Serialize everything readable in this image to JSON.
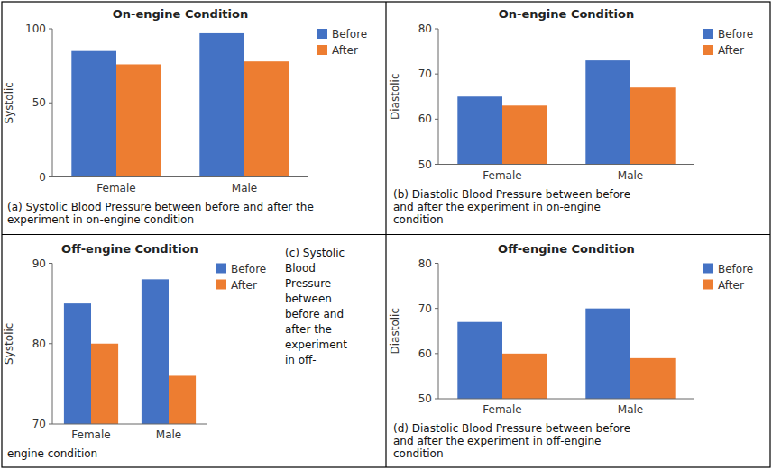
{
  "chart_data": [
    {
      "type": "bar",
      "title": "On-engine Condition",
      "ylabel": "Systolic",
      "categories": [
        "Female",
        "Male"
      ],
      "series": [
        {
          "name": "Before",
          "color": "#4472C4",
          "values": [
            85,
            97
          ]
        },
        {
          "name": "After",
          "color": "#ED7D31",
          "values": [
            76,
            78
          ]
        }
      ],
      "ylim": [
        0,
        100
      ],
      "yticks": [
        0,
        50,
        100
      ],
      "grid": false,
      "legend": "upper right",
      "annotations": [
        "(a) Systolic Blood Pressure between before and after the",
        "experiment in on-engine condition"
      ]
    },
    {
      "type": "bar",
      "title": "On-engine Condition",
      "ylabel": "Diastolic",
      "categories": [
        "Female",
        "Male"
      ],
      "series": [
        {
          "name": "Before",
          "color": "#4472C4",
          "values": [
            65,
            73
          ]
        },
        {
          "name": "After",
          "color": "#ED7D31",
          "values": [
            63,
            67
          ]
        }
      ],
      "ylim": [
        50,
        80
      ],
      "yticks": [
        50,
        60,
        70,
        80
      ],
      "grid": false,
      "legend": "upper right",
      "annotations": [
        "(b) Diastolic Blood Pressure between before",
        "and after the experiment in on-engine",
        "condition"
      ]
    },
    {
      "type": "bar",
      "title": "Off-engine Condition",
      "ylabel": "Systolic",
      "categories": [
        "Female",
        "Male"
      ],
      "series": [
        {
          "name": "Before",
          "color": "#4472C4",
          "values": [
            85,
            88
          ]
        },
        {
          "name": "After",
          "color": "#ED7D31",
          "values": [
            80,
            76
          ]
        }
      ],
      "ylim": [
        70,
        90
      ],
      "yticks": [
        70,
        80,
        90
      ],
      "grid": false,
      "legend": "upper right",
      "annotations": [
        "(c) Systolic",
        "Blood",
        "Pressure",
        "between",
        "before and",
        "after the",
        "experiment",
        "in off-",
        "engine condition"
      ]
    },
    {
      "type": "bar",
      "title": "Off-engine Condition",
      "ylabel": "Diastolic",
      "categories": [
        "Female",
        "Male"
      ],
      "series": [
        {
          "name": "Before",
          "color": "#4472C4",
          "values": [
            67,
            70
          ]
        },
        {
          "name": "After",
          "color": "#ED7D31",
          "values": [
            60,
            59
          ]
        }
      ],
      "ylim": [
        50,
        80
      ],
      "yticks": [
        50,
        60,
        70,
        80
      ],
      "grid": false,
      "legend": "upper right",
      "annotations": [
        "(d) Diastolic Blood Pressure between before",
        "and after the experiment in off-engine",
        "condition"
      ]
    }
  ]
}
